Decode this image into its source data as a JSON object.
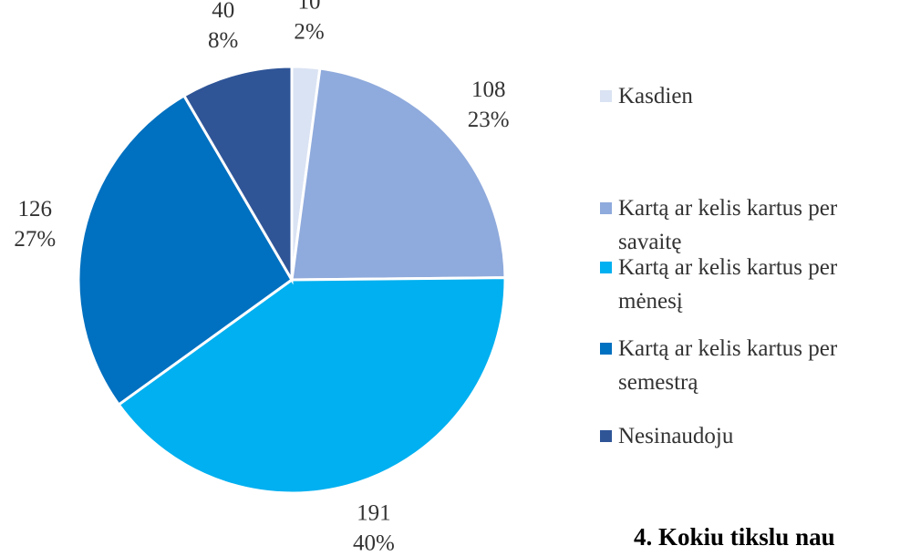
{
  "chart_data": {
    "type": "pie",
    "categories": [
      "Kasdien",
      "Kartą ar kelis kartus per savaitę",
      "Kartą ar kelis kartus per mėnesį",
      "Kartą ar kelis kartus per semestrą",
      "Nesinaudoju"
    ],
    "values": [
      10,
      108,
      191,
      126,
      40
    ],
    "percent_labels": [
      "2%",
      "23%",
      "40%",
      "27%",
      "8%"
    ],
    "colors": [
      "#dae3f3",
      "#8faadc",
      "#00b0f0",
      "#0070c0",
      "#2f5597"
    ],
    "legend": "right",
    "footer_text": "4. Kokiu tikslu nau"
  }
}
